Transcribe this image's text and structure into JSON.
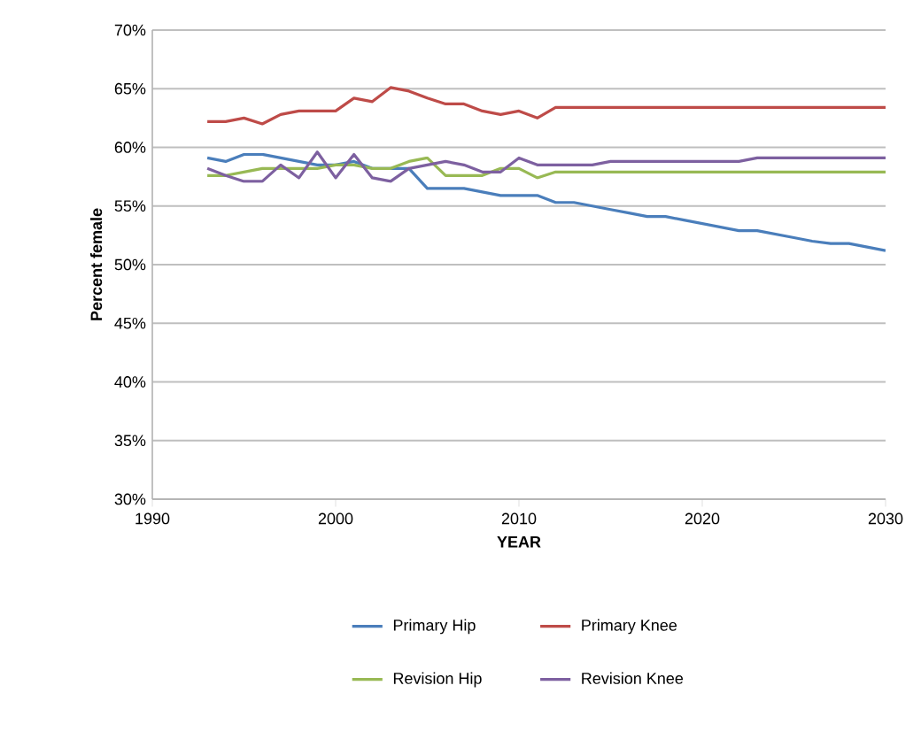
{
  "chart_data": {
    "type": "line",
    "xlabel": "YEAR",
    "ylabel": "Percent female",
    "x": [
      1993,
      1994,
      1995,
      1996,
      1997,
      1998,
      1999,
      2000,
      2001,
      2002,
      2003,
      2004,
      2005,
      2006,
      2007,
      2008,
      2009,
      2010,
      2011,
      2012,
      2013,
      2014,
      2015,
      2016,
      2017,
      2018,
      2019,
      2020,
      2021,
      2022,
      2023,
      2024,
      2025,
      2026,
      2027,
      2028,
      2029,
      2030
    ],
    "series": [
      {
        "name": "Primary Hip",
        "color": "#4a7ebb",
        "values": [
          59.1,
          58.8,
          59.4,
          59.4,
          59.1,
          58.8,
          58.5,
          58.5,
          58.8,
          58.2,
          58.2,
          58.2,
          56.5,
          56.5,
          56.5,
          56.2,
          55.9,
          55.9,
          55.9,
          55.3,
          55.3,
          55.0,
          54.7,
          54.4,
          54.1,
          54.1,
          53.8,
          53.5,
          53.2,
          52.9,
          52.9,
          52.6,
          52.3,
          52.0,
          51.8,
          51.8,
          51.5,
          51.2
        ]
      },
      {
        "name": "Primary Knee",
        "color": "#be4b48",
        "values": [
          62.2,
          62.2,
          62.5,
          62.0,
          62.8,
          63.1,
          63.1,
          63.1,
          64.2,
          63.9,
          65.1,
          64.8,
          64.2,
          63.7,
          63.7,
          63.1,
          62.8,
          63.1,
          62.5,
          63.4,
          63.4,
          63.4,
          63.4,
          63.4,
          63.4,
          63.4,
          63.4,
          63.4,
          63.4,
          63.4,
          63.4,
          63.4,
          63.4,
          63.4,
          63.4,
          63.4,
          63.4,
          63.4
        ]
      },
      {
        "name": "Revision Hip",
        "color": "#98b954",
        "values": [
          57.6,
          57.6,
          57.9,
          58.2,
          58.2,
          58.2,
          58.2,
          58.5,
          58.5,
          58.2,
          58.2,
          58.8,
          59.1,
          57.6,
          57.6,
          57.6,
          58.2,
          58.2,
          57.4,
          57.9,
          57.9,
          57.9,
          57.9,
          57.9,
          57.9,
          57.9,
          57.9,
          57.9,
          57.9,
          57.9,
          57.9,
          57.9,
          57.9,
          57.9,
          57.9,
          57.9,
          57.9,
          57.9
        ]
      },
      {
        "name": "Revision Knee",
        "color": "#7d60a0",
        "values": [
          58.2,
          57.6,
          57.1,
          57.1,
          58.5,
          57.4,
          59.6,
          57.4,
          59.4,
          57.4,
          57.1,
          58.2,
          58.5,
          58.8,
          58.5,
          57.9,
          57.9,
          59.1,
          58.5,
          58.5,
          58.5,
          58.5,
          58.8,
          58.8,
          58.8,
          58.8,
          58.8,
          58.8,
          58.8,
          58.8,
          59.1,
          59.1,
          59.1,
          59.1,
          59.1,
          59.1,
          59.1,
          59.1
        ]
      }
    ],
    "xlim": [
      1990,
      2030
    ],
    "xticks": [
      1990,
      2000,
      2010,
      2020,
      2030
    ],
    "ylim": [
      30,
      70
    ],
    "yticks": [
      {
        "value": 30,
        "label": "30%"
      },
      {
        "value": 35,
        "label": "35%"
      },
      {
        "value": 40,
        "label": "40%"
      },
      {
        "value": 45,
        "label": "45%"
      },
      {
        "value": 50,
        "label": "50%"
      },
      {
        "value": 55,
        "label": "55%"
      },
      {
        "value": 60,
        "label": "60%"
      },
      {
        "value": 65,
        "label": "65%"
      },
      {
        "value": 70,
        "label": "70%"
      }
    ],
    "grid": "y",
    "legend": "bottom",
    "marker": "none",
    "line_style": "solid"
  }
}
